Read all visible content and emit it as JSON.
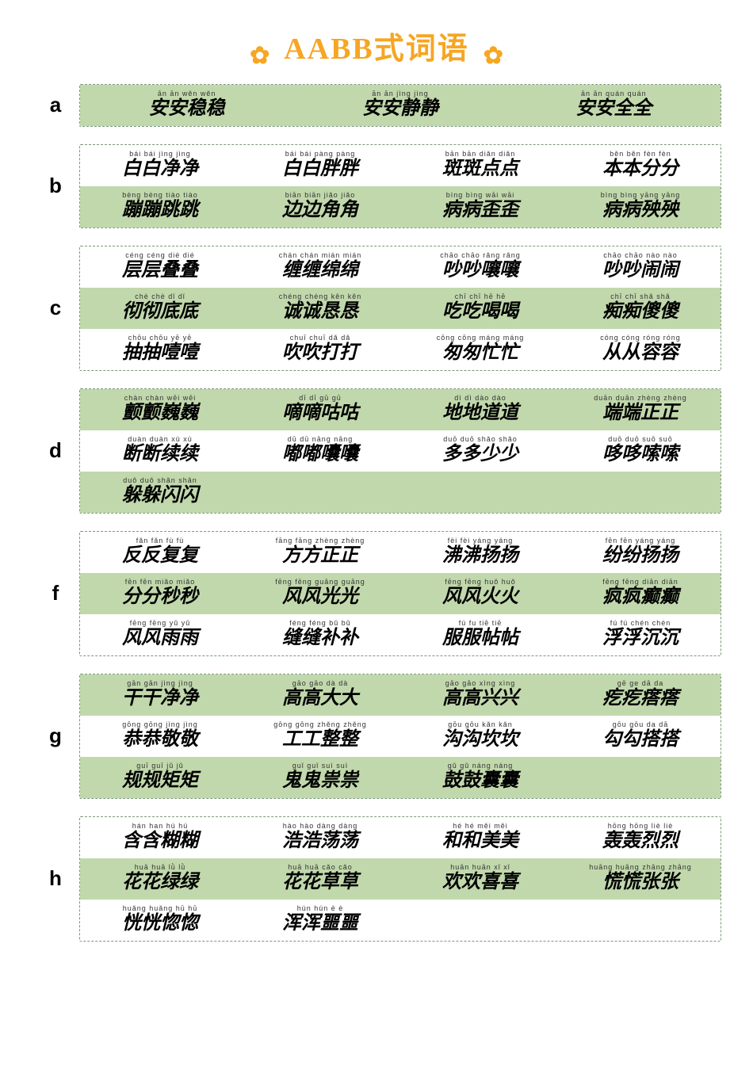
{
  "title": "AABB式词语",
  "flower_glyph": "✿",
  "colors": {
    "accent": "#f6a623",
    "row_green": "#c1d8ac",
    "row_white": "#ffffff",
    "border": "#7a9a78"
  },
  "sections": [
    {
      "letter": "a",
      "cols": 3,
      "rows": [
        {
          "bg": "green",
          "cells": [
            {
              "pinyin": "ān ān wěn wěn",
              "hanzi": "安安稳稳"
            },
            {
              "pinyin": "ān ān jìng jìng",
              "hanzi": "安安静静"
            },
            {
              "pinyin": "ān ān quán quán",
              "hanzi": "安安全全"
            }
          ]
        }
      ]
    },
    {
      "letter": "b",
      "cols": 4,
      "rows": [
        {
          "bg": "white",
          "cells": [
            {
              "pinyin": "bái bái jìng jìng",
              "hanzi": "白白净净"
            },
            {
              "pinyin": "bái bái pàng pàng",
              "hanzi": "白白胖胖"
            },
            {
              "pinyin": "bān bān diǎn diǎn",
              "hanzi": "斑斑点点"
            },
            {
              "pinyin": "běn běn fèn fèn",
              "hanzi": "本本分分"
            }
          ]
        },
        {
          "bg": "green",
          "cells": [
            {
              "pinyin": "bèng bèng tiào tiào",
              "hanzi": "蹦蹦跳跳"
            },
            {
              "pinyin": "biān biān jiǎo jiǎo",
              "hanzi": "边边角角"
            },
            {
              "pinyin": "bìng bìng wāi wāi",
              "hanzi": "病病歪歪"
            },
            {
              "pinyin": "bìng bìng yāng yāng",
              "hanzi": "病病殃殃"
            }
          ]
        }
      ]
    },
    {
      "letter": "c",
      "cols": 4,
      "rows": [
        {
          "bg": "white",
          "cells": [
            {
              "pinyin": "céng céng dié dié",
              "hanzi": "层层叠叠"
            },
            {
              "pinyin": "chán chán mián mián",
              "hanzi": "缠缠绵绵"
            },
            {
              "pinyin": "chāo chāo rǎng rǎng",
              "hanzi": "吵吵嚷嚷"
            },
            {
              "pinyin": "chāo chāo nào nào",
              "hanzi": "吵吵闹闹"
            }
          ]
        },
        {
          "bg": "green",
          "cells": [
            {
              "pinyin": "chè chè dǐ dǐ",
              "hanzi": "彻彻底底"
            },
            {
              "pinyin": "chéng chéng kěn kěn",
              "hanzi": "诚诚恳恳"
            },
            {
              "pinyin": "chī chī hē hē",
              "hanzi": "吃吃喝喝"
            },
            {
              "pinyin": "chī chī shǎ shǎ",
              "hanzi": "痴痴傻傻"
            }
          ]
        },
        {
          "bg": "white",
          "cells": [
            {
              "pinyin": "chōu chōu yē yē",
              "hanzi": "抽抽噎噎"
            },
            {
              "pinyin": "chuī chuī dǎ dǎ",
              "hanzi": "吹吹打打"
            },
            {
              "pinyin": "cōng cōng máng máng",
              "hanzi": "匆匆忙忙"
            },
            {
              "pinyin": "cóng cóng róng róng",
              "hanzi": "从从容容"
            }
          ]
        }
      ]
    },
    {
      "letter": "d",
      "cols": 4,
      "rows": [
        {
          "bg": "green",
          "cells": [
            {
              "pinyin": "chàn chàn wēi wēi",
              "hanzi": "颤颤巍巍"
            },
            {
              "pinyin": "dī dī gū gū",
              "hanzi": "嘀嘀咕咕"
            },
            {
              "pinyin": "dì dì dào dào",
              "hanzi": "地地道道"
            },
            {
              "pinyin": "duān duān zhèng zhèng",
              "hanzi": "端端正正"
            }
          ]
        },
        {
          "bg": "white",
          "cells": [
            {
              "pinyin": "duàn duàn xù xù",
              "hanzi": "断断续续"
            },
            {
              "pinyin": "dū dū nāng nāng",
              "hanzi": "嘟嘟囔囔"
            },
            {
              "pinyin": "duō duō shǎo shǎo",
              "hanzi": "多多少少"
            },
            {
              "pinyin": "duō duō suō suō",
              "hanzi": "哆哆嗦嗦"
            }
          ]
        },
        {
          "bg": "green",
          "cells": [
            {
              "pinyin": "duǒ duǒ shǎn shǎn",
              "hanzi": "躲躲闪闪"
            },
            {
              "empty": true
            },
            {
              "empty": true
            },
            {
              "empty": true
            }
          ]
        }
      ]
    },
    {
      "letter": "f",
      "cols": 4,
      "rows": [
        {
          "bg": "white",
          "cells": [
            {
              "pinyin": "fǎn fǎn fù fù",
              "hanzi": "反反复复"
            },
            {
              "pinyin": "fāng fāng zhèng zhèng",
              "hanzi": "方方正正"
            },
            {
              "pinyin": "fèi fèi yáng yáng",
              "hanzi": "沸沸扬扬"
            },
            {
              "pinyin": "fēn fēn yáng yáng",
              "hanzi": "纷纷扬扬"
            }
          ]
        },
        {
          "bg": "green",
          "cells": [
            {
              "pinyin": "fēn fēn miǎo miǎo",
              "hanzi": "分分秒秒"
            },
            {
              "pinyin": "fēng fēng guāng guāng",
              "hanzi": "风风光光"
            },
            {
              "pinyin": "fēng fēng huǒ huǒ",
              "hanzi": "风风火火"
            },
            {
              "pinyin": "fēng fēng diān diān",
              "hanzi": "疯疯癫癫"
            }
          ]
        },
        {
          "bg": "white",
          "cells": [
            {
              "pinyin": "fēng fēng yǔ yǔ",
              "hanzi": "风风雨雨"
            },
            {
              "pinyin": "féng féng bǔ bǔ",
              "hanzi": "缝缝补补"
            },
            {
              "pinyin": "fú fu tiē tiē",
              "hanzi": "服服帖帖"
            },
            {
              "pinyin": "fú fú chén chén",
              "hanzi": "浮浮沉沉"
            }
          ]
        }
      ]
    },
    {
      "letter": "g",
      "cols": 4,
      "rows": [
        {
          "bg": "green",
          "cells": [
            {
              "pinyin": "gān gān jìng jìng",
              "hanzi": "干干净净"
            },
            {
              "pinyin": "gāo gāo dà dà",
              "hanzi": "高高大大"
            },
            {
              "pinyin": "gāo gāo xìng xìng",
              "hanzi": "高高兴兴"
            },
            {
              "pinyin": "gē ge dā da",
              "hanzi": "疙疙瘩瘩"
            }
          ]
        },
        {
          "bg": "white",
          "cells": [
            {
              "pinyin": "gōng gōng jìng jìng",
              "hanzi": "恭恭敬敬"
            },
            {
              "pinyin": "gōng gōng zhěng zhěng",
              "hanzi": "工工整整"
            },
            {
              "pinyin": "gōu gōu kǎn kǎn",
              "hanzi": "沟沟坎坎"
            },
            {
              "pinyin": "gōu gōu da dā",
              "hanzi": "勾勾搭搭"
            }
          ]
        },
        {
          "bg": "green",
          "cells": [
            {
              "pinyin": "guī guī jǔ jǔ",
              "hanzi": "规规矩矩"
            },
            {
              "pinyin": "guǐ guǐ suì suì",
              "hanzi": "鬼鬼祟祟"
            },
            {
              "pinyin": "gǔ gǔ náng náng",
              "hanzi": "鼓鼓囊囊"
            },
            {
              "empty": true
            }
          ]
        }
      ]
    },
    {
      "letter": "h",
      "cols": 4,
      "rows": [
        {
          "bg": "white",
          "cells": [
            {
              "pinyin": "hán han hú hú",
              "hanzi": "含含糊糊"
            },
            {
              "pinyin": "hào hào dàng dàng",
              "hanzi": "浩浩荡荡"
            },
            {
              "pinyin": "hé hé měi měi",
              "hanzi": "和和美美"
            },
            {
              "pinyin": "hōng hōng liè liè",
              "hanzi": "轰轰烈烈"
            }
          ]
        },
        {
          "bg": "green",
          "cells": [
            {
              "pinyin": "huā huā lǜ lǜ",
              "hanzi": "花花绿绿"
            },
            {
              "pinyin": "huā huā cǎo cǎo",
              "hanzi": "花花草草"
            },
            {
              "pinyin": "huān huān xǐ xǐ",
              "hanzi": "欢欢喜喜"
            },
            {
              "pinyin": "huāng huāng zhāng zhāng",
              "hanzi": "慌慌张张"
            }
          ]
        },
        {
          "bg": "white",
          "cells": [
            {
              "pinyin": "huǎng huǎng hū hū",
              "hanzi": "恍恍惚惚"
            },
            {
              "pinyin": "hún hún è è",
              "hanzi": "浑浑噩噩"
            },
            {
              "empty": true
            },
            {
              "empty": true
            }
          ]
        }
      ]
    }
  ]
}
